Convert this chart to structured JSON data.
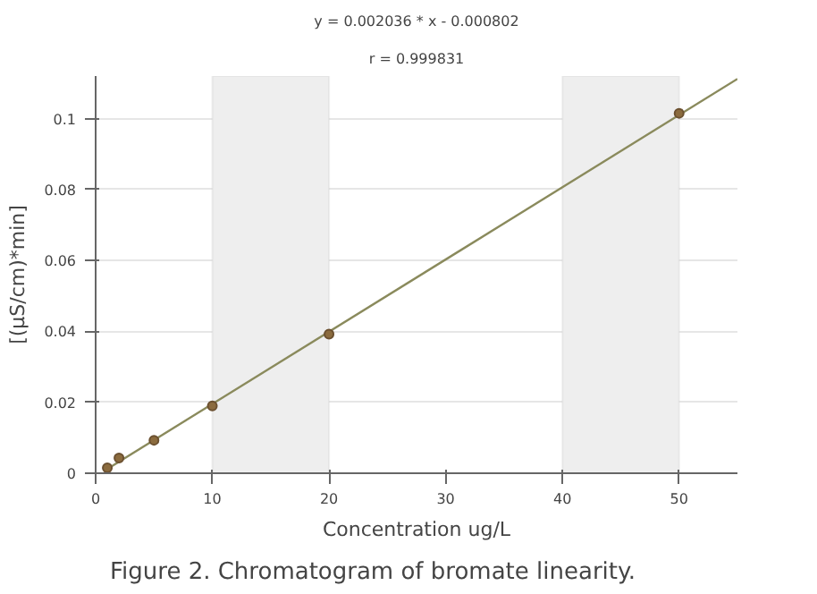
{
  "chart_data": {
    "type": "scatter",
    "title": "y = 0.002036 * x - 0.000802",
    "subtitle": "r = 0.999831",
    "xlabel": "Concentration ug/L",
    "ylabel": "[(µS/cm)*min]",
    "annotations": [
      "Figure 2. Chromatogram of bromate linearity."
    ],
    "xlim": [
      0,
      55
    ],
    "ylim": [
      0,
      0.112
    ],
    "xticks": [
      0,
      10,
      20,
      30,
      40,
      50
    ],
    "yticks": [
      0,
      0.02,
      0.04,
      0.06,
      0.08,
      0.1
    ],
    "grid": "y",
    "marker": "circle",
    "bands": [
      {
        "axis": "x",
        "from": 10,
        "to": 20,
        "color": "#eeeeee"
      },
      {
        "axis": "x",
        "from": 40,
        "to": 50,
        "color": "#eeeeee"
      }
    ],
    "series": [
      {
        "type": "line",
        "marker": "none",
        "color": "#8a8a5c",
        "x": [
          1,
          55
        ],
        "values": [
          0.0012,
          0.1112
        ]
      },
      {
        "color": "#8b6b3e",
        "x": [
          1,
          2,
          5,
          10,
          20,
          50
        ],
        "values": [
          0.0015,
          0.0043,
          0.0093,
          0.019,
          0.0392,
          0.1015
        ]
      }
    ]
  }
}
